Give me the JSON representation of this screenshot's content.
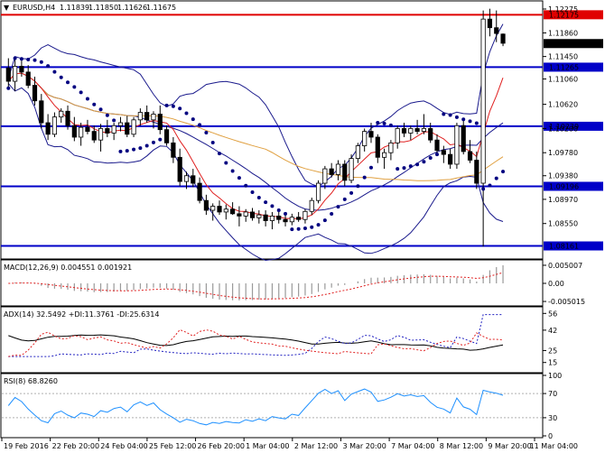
{
  "chart_data": {
    "type": "candlestick",
    "symbol_label": "EURUSD,H4",
    "ohlc": {
      "open": "1.11839",
      "high": "1.11850",
      "low": "1.11626",
      "close": "1.11675"
    },
    "price_axis": {
      "ylim": [
        1.0795,
        1.124
      ],
      "ticks": [
        "1.12275",
        "1.11860",
        "1.11450",
        "1.11060",
        "1.10620",
        "1.10200",
        "1.09780",
        "1.09380",
        "1.08970",
        "1.08550"
      ],
      "tick_values": [
        1.12275,
        1.1186,
        1.1145,
        1.1106,
        1.1062,
        1.102,
        1.0978,
        1.0938,
        1.0897,
        1.0855
      ]
    },
    "horizontal_levels": [
      {
        "label": "1.12175",
        "value": 1.12175,
        "color": "#e00000"
      },
      {
        "label": "1.11265",
        "value": 1.11265,
        "color": "#0000c8"
      },
      {
        "label": "1.10239",
        "value": 1.10239,
        "color": "#0000c8"
      },
      {
        "label": "1.09196",
        "value": 1.09196,
        "color": "#0000c8"
      },
      {
        "label": "1.08161",
        "value": 1.08161,
        "color": "#0000c8"
      }
    ],
    "last_price_label": "1.11675",
    "last_price": 1.11675,
    "candles": [
      [
        1.1125,
        1.1142,
        1.109,
        1.1102
      ],
      [
        1.1102,
        1.114,
        1.1085,
        1.1128
      ],
      [
        1.1128,
        1.1138,
        1.111,
        1.1118
      ],
      [
        1.1118,
        1.113,
        1.109,
        1.1095
      ],
      [
        1.1095,
        1.111,
        1.106,
        1.1068
      ],
      [
        1.1068,
        1.108,
        1.102,
        1.103
      ],
      [
        1.103,
        1.1045,
        1.1,
        1.101
      ],
      [
        1.101,
        1.1048,
        1.1005,
        1.104
      ],
      [
        1.104,
        1.1055,
        1.103,
        1.105
      ],
      [
        1.105,
        1.106,
        1.1018,
        1.1025
      ],
      [
        1.1025,
        1.104,
        1.0998,
        1.1005
      ],
      [
        1.1005,
        1.103,
        1.099,
        1.1022
      ],
      [
        1.1022,
        1.1035,
        1.101,
        1.1015
      ],
      [
        1.1015,
        1.1025,
        1.0995,
        1.1
      ],
      [
        1.1,
        1.1028,
        1.098,
        1.102
      ],
      [
        1.102,
        1.1035,
        1.1005,
        1.1012
      ],
      [
        1.1012,
        1.103,
        1.1,
        1.1025
      ],
      [
        1.1025,
        1.104,
        1.1015,
        1.103
      ],
      [
        1.103,
        1.1042,
        1.1005,
        1.101
      ],
      [
        1.101,
        1.104,
        1.1005,
        1.1035
      ],
      [
        1.1035,
        1.1055,
        1.1025,
        1.1048
      ],
      [
        1.1048,
        1.106,
        1.103,
        1.1035
      ],
      [
        1.1035,
        1.105,
        1.102,
        1.1045
      ],
      [
        1.1045,
        1.106,
        1.101,
        1.1018
      ],
      [
        1.1018,
        1.1025,
        1.099,
        1.0995
      ],
      [
        1.0995,
        1.1005,
        1.096,
        1.097
      ],
      [
        1.097,
        1.0985,
        1.092,
        1.0928
      ],
      [
        1.0928,
        1.0945,
        1.0915,
        1.0938
      ],
      [
        1.0938,
        1.095,
        1.0918,
        1.0925
      ],
      [
        1.0925,
        1.0935,
        1.089,
        1.0895
      ],
      [
        1.0895,
        1.0905,
        1.087,
        1.0878
      ],
      [
        1.0878,
        1.089,
        1.086,
        1.0885
      ],
      [
        1.0885,
        1.0895,
        1.087,
        1.0875
      ],
      [
        1.0875,
        1.0888,
        1.0862,
        1.088
      ],
      [
        1.088,
        1.0892,
        1.087,
        1.0872
      ],
      [
        1.0872,
        1.0885,
        1.085,
        1.0868
      ],
      [
        1.0868,
        1.088,
        1.0858,
        1.0875
      ],
      [
        1.0875,
        1.0882,
        1.086,
        1.0865
      ],
      [
        1.0865,
        1.0878,
        1.0855,
        1.087
      ],
      [
        1.087,
        1.0878,
        1.085,
        1.086
      ],
      [
        1.086,
        1.0875,
        1.0845,
        1.0868
      ],
      [
        1.0868,
        1.0875,
        1.0855,
        1.0862
      ],
      [
        1.0862,
        1.087,
        1.085,
        1.0858
      ],
      [
        1.0858,
        1.0872,
        1.0852,
        1.0866
      ],
      [
        1.0866,
        1.0875,
        1.0858,
        1.0862
      ],
      [
        1.0862,
        1.088,
        1.0855,
        1.0876
      ],
      [
        1.0876,
        1.09,
        1.087,
        1.0895
      ],
      [
        1.0895,
        1.093,
        1.089,
        1.0925
      ],
      [
        1.0925,
        1.0955,
        1.0915,
        1.095
      ],
      [
        1.095,
        1.096,
        1.0935,
        1.094
      ],
      [
        1.094,
        1.0965,
        1.093,
        1.0958
      ],
      [
        1.0958,
        1.0965,
        1.092,
        1.093
      ],
      [
        1.093,
        1.0975,
        1.0925,
        1.0968
      ],
      [
        1.0968,
        1.0995,
        1.096,
        1.099
      ],
      [
        1.099,
        1.102,
        1.098,
        1.1015
      ],
      [
        1.1015,
        1.103,
        1.0995,
        1.1005
      ],
      [
        1.1005,
        1.101,
        1.096,
        1.097
      ],
      [
        1.097,
        1.0985,
        1.095,
        1.0978
      ],
      [
        1.0978,
        1.1,
        1.0965,
        1.0995
      ],
      [
        1.0995,
        1.1025,
        1.0985,
        1.102
      ],
      [
        1.102,
        1.103,
        1.1005,
        1.1012
      ],
      [
        1.1012,
        1.1025,
        1.1,
        1.102
      ],
      [
        1.102,
        1.1035,
        1.101,
        1.1015
      ],
      [
        1.1015,
        1.1045,
        1.101,
        1.102
      ],
      [
        1.102,
        1.103,
        1.0995,
        1.1
      ],
      [
        1.1,
        1.101,
        1.0975,
        1.0982
      ],
      [
        1.0982,
        1.099,
        1.096,
        1.0975
      ],
      [
        1.0975,
        1.0985,
        1.095,
        1.0958
      ],
      [
        1.0958,
        1.103,
        1.095,
        1.1025
      ],
      [
        1.1025,
        1.1035,
        1.0975,
        1.098
      ],
      [
        1.098,
        1.1,
        1.096,
        1.0965
      ],
      [
        1.0965,
        1.098,
        1.0915,
        1.0925
      ],
      [
        1.0925,
        1.1225,
        1.0815,
        1.121
      ],
      [
        1.121,
        1.1228,
        1.118,
        1.1195
      ],
      [
        1.1195,
        1.1225,
        1.117,
        1.1185
      ],
      [
        1.1184,
        1.1185,
        1.1163,
        1.1168
      ]
    ],
    "time_axis": [
      "19 Feb 2016",
      "22 Feb 20:00",
      "24 Feb 04:00",
      "25 Feb 12:00",
      "26 Feb 20:00",
      "1 Mar 04:00",
      "2 Mar 12:00",
      "3 Mar 20:00",
      "7 Mar 04:00",
      "8 Mar 12:00",
      "9 Mar 20:00",
      "11 Mar 04:00"
    ],
    "panels": {
      "macd": {
        "label": "MACD(12,26,9) 0.004551 0.001921",
        "ticks": [
          "0.005007",
          "0.00",
          "-0.005015"
        ],
        "tick_values": [
          0.005007,
          0.0,
          -0.005015
        ],
        "ylim": [
          -0.006,
          0.006
        ]
      },
      "adx": {
        "label": "ADX(14) 32.5492 +DI:11.3761 -DI:25.6314",
        "ticks": [
          "56",
          "42",
          "25",
          "15"
        ],
        "tick_values": [
          56,
          42,
          25,
          15
        ],
        "ylim": [
          8,
          60
        ]
      },
      "rsi": {
        "label": "RSI(8) 68.8260",
        "ticks": [
          "100",
          "70",
          "30",
          "0"
        ],
        "tick_values": [
          100,
          70,
          30,
          0
        ],
        "ylim": [
          0,
          100
        ]
      }
    }
  }
}
